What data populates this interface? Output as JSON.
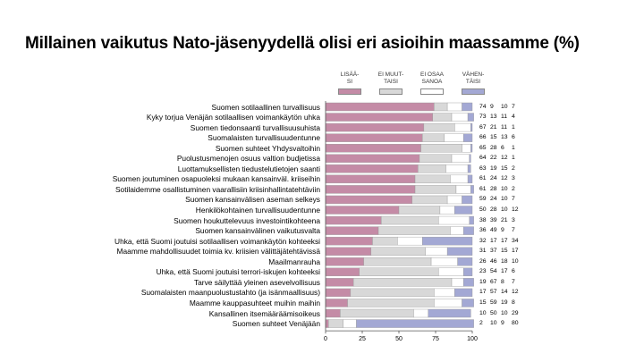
{
  "page": {
    "title": "Millainen vaikutus Nato-jäsenyydellä olisi eri asioihin maassamme (%)"
  },
  "chart_data": {
    "type": "bar",
    "orientation": "horizontal",
    "stacked": true,
    "title": "Millainen vaikutus Nato-jäsenyydellä olisi eri asioihin maassamme (%)",
    "xlim": [
      0,
      100
    ],
    "xticks": [
      "0",
      "25",
      "50",
      "75",
      "100"
    ],
    "legend_position": "top-right",
    "series": [
      {
        "name": "LISÄÄ-SI",
        "label_lines": [
          "LISÄÄ-",
          "SI"
        ],
        "color": "#c48ba6"
      },
      {
        "name": "EI MUUTTAISI",
        "label_lines": [
          "EI MUUT-",
          "TAISI"
        ],
        "color": "#d8d8d8"
      },
      {
        "name": "EI OSAA SANOA",
        "label_lines": [
          "EI OSAA",
          "SANOA"
        ],
        "color": "#ffffff"
      },
      {
        "name": "VÄHENTÄISI",
        "label_lines": [
          "VÄHEN-",
          "TÄISI"
        ],
        "color": "#a3a8d4"
      }
    ],
    "categories": [
      "Suomen sotilaallinen turvallisuus",
      "Kyky torjua Venäjän sotilaallisen voimankäytön uhka",
      "Suomen tiedonsaanti turvallisuusuhista",
      "Suomalaisten turvallisuudentunne",
      "Suomen suhteet Yhdysvaltoihin",
      "Puolustusmenojen osuus valtion budjetissa",
      "Luottamuksellisten tiedustelutietojen saanti",
      "Suomen joutuminen osapuoleksi mukaan kansainväl. kriiseihin",
      "Sotilaidemme osallistuminen vaarallisiin kriisinhallintatehtäviin",
      "Suomen kansainvälisen aseman selkeys",
      "Henkilökohtainen turvallisuudentunne",
      "Suomen houkuttelevuus investointikohteena",
      "Suomen kansainvälinen vaikutusvalta",
      "Uhka, että Suomi joutuisi sotilaallisen voimankäytön kohteeksi",
      "Maamme mahdollisuudet toimia kv. kriisien välittäjätehtävissä",
      "Maailmanrauha",
      "Uhka, että Suomi joutuisi terrori-iskujen kohteeksi",
      "Tarve säilyttää yleinen asevelvollisuus",
      "Suomalaisten maanpuolustustahto (ja isänmaallisuus)",
      "Maamme kauppasuhteet muihin maihin",
      "Kansallinen itsemääräämisoikeus",
      "Suomen suhteet Venäjään"
    ],
    "values": [
      [
        74,
        9,
        10,
        7
      ],
      [
        73,
        13,
        11,
        4
      ],
      [
        67,
        21,
        11,
        1
      ],
      [
        66,
        15,
        13,
        6
      ],
      [
        65,
        28,
        6,
        1
      ],
      [
        64,
        22,
        12,
        1
      ],
      [
        63,
        19,
        15,
        2
      ],
      [
        61,
        24,
        12,
        3
      ],
      [
        61,
        28,
        10,
        2
      ],
      [
        59,
        24,
        10,
        7
      ],
      [
        50,
        28,
        10,
        12
      ],
      [
        38,
        39,
        21,
        3
      ],
      [
        36,
        49,
        9,
        7
      ],
      [
        32,
        17,
        17,
        34
      ],
      [
        31,
        37,
        15,
        17
      ],
      [
        26,
        46,
        18,
        10
      ],
      [
        23,
        54,
        17,
        6
      ],
      [
        19,
        67,
        8,
        7
      ],
      [
        17,
        57,
        14,
        12
      ],
      [
        15,
        59,
        19,
        8
      ],
      [
        10,
        50,
        10,
        29
      ],
      [
        2,
        10,
        9,
        80
      ]
    ]
  }
}
